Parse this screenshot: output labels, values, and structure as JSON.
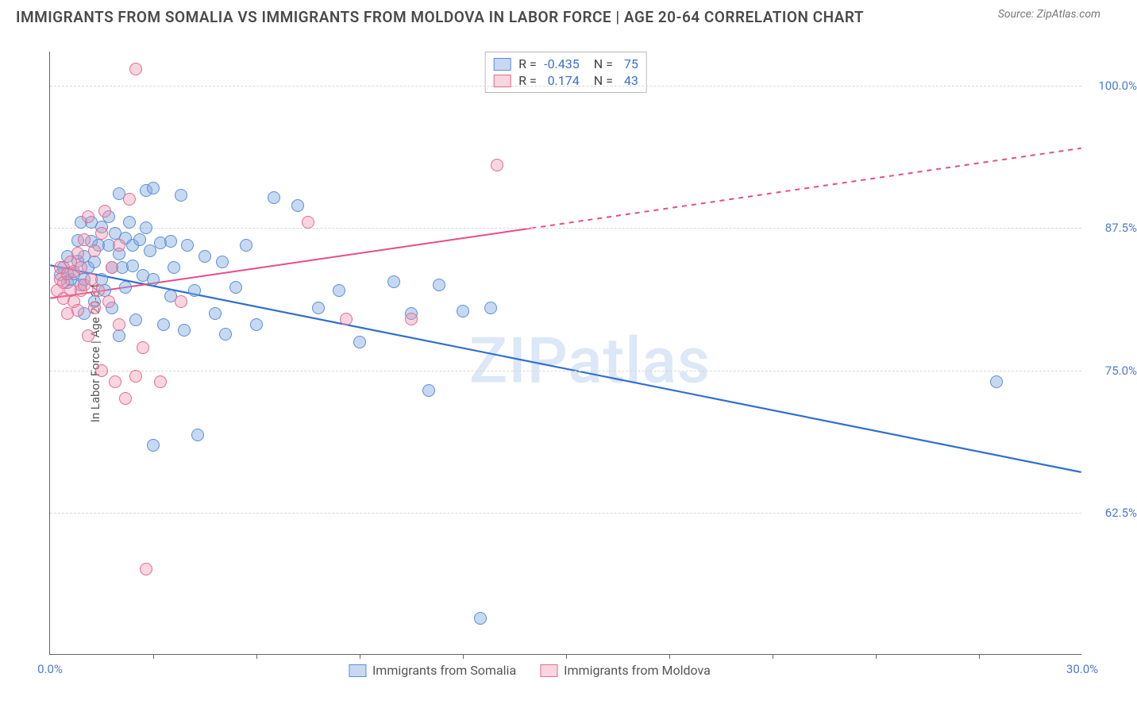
{
  "title": "IMMIGRANTS FROM SOMALIA VS IMMIGRANTS FROM MOLDOVA IN LABOR FORCE | AGE 20-64 CORRELATION CHART",
  "source": "Source: ZipAtlas.com",
  "watermark": "ZIPatlas",
  "ylabel": "In Labor Force | Age 20-64",
  "chart": {
    "type": "scatter-correlation",
    "background_color": "#ffffff",
    "grid_color": "#d8d8d8",
    "axis_color": "#666666",
    "xlim": [
      0.0,
      30.0
    ],
    "ylim": [
      50.0,
      103.0
    ],
    "xticks": [
      0.0,
      30.0
    ],
    "xtick_labels": [
      "0.0%",
      "30.0%"
    ],
    "yticks": [
      62.5,
      75.0,
      87.5,
      100.0
    ],
    "ytick_labels": [
      "62.5%",
      "75.0%",
      "87.5%",
      "100.0%"
    ],
    "xtick_minor": [
      3,
      6,
      9,
      12,
      15,
      18,
      21,
      24,
      27
    ],
    "point_radius": 8,
    "series": [
      {
        "id": "somalia",
        "label": "Immigrants from Somalia",
        "color_fill": "rgba(130,170,225,0.45)",
        "color_stroke": "#5a8fd6",
        "r": -0.435,
        "n": 75,
        "trend": {
          "x1": 0,
          "y1": 84.2,
          "x2": 30,
          "y2": 66.0,
          "solid_until_x": 30,
          "color": "#2f6fd0",
          "width": 2.2
        },
        "points": [
          [
            0.3,
            83.4
          ],
          [
            0.4,
            84.0
          ],
          [
            0.5,
            82.7
          ],
          [
            0.5,
            85.0
          ],
          [
            0.6,
            83.0
          ],
          [
            0.7,
            83.5
          ],
          [
            0.8,
            84.6
          ],
          [
            0.8,
            86.4
          ],
          [
            0.9,
            82.5
          ],
          [
            0.9,
            88.0
          ],
          [
            1.0,
            85.0
          ],
          [
            1.0,
            83.0
          ],
          [
            1.0,
            80.0
          ],
          [
            1.1,
            84.0
          ],
          [
            1.2,
            88.0
          ],
          [
            1.2,
            86.3
          ],
          [
            1.3,
            84.5
          ],
          [
            1.3,
            81.0
          ],
          [
            1.4,
            86.0
          ],
          [
            1.5,
            83.0
          ],
          [
            1.5,
            87.6
          ],
          [
            1.6,
            82.0
          ],
          [
            1.7,
            88.5
          ],
          [
            1.7,
            86.0
          ],
          [
            1.8,
            84.0
          ],
          [
            1.8,
            80.5
          ],
          [
            1.9,
            87.0
          ],
          [
            2.0,
            85.2
          ],
          [
            2.0,
            90.5
          ],
          [
            2.1,
            84.0
          ],
          [
            2.2,
            86.6
          ],
          [
            2.2,
            82.3
          ],
          [
            2.3,
            88.0
          ],
          [
            2.4,
            86.0
          ],
          [
            2.4,
            84.2
          ],
          [
            2.5,
            79.4
          ],
          [
            2.6,
            86.5
          ],
          [
            2.7,
            83.3
          ],
          [
            2.8,
            90.8
          ],
          [
            2.8,
            87.5
          ],
          [
            2.9,
            85.5
          ],
          [
            3.0,
            83.0
          ],
          [
            3.0,
            68.4
          ],
          [
            3.2,
            86.2
          ],
          [
            3.3,
            79.0
          ],
          [
            3.5,
            86.3
          ],
          [
            3.5,
            81.5
          ],
          [
            3.6,
            84.0
          ],
          [
            3.8,
            90.4
          ],
          [
            3.9,
            78.5
          ],
          [
            4.0,
            86.0
          ],
          [
            4.2,
            82.0
          ],
          [
            4.3,
            69.3
          ],
          [
            4.5,
            85.0
          ],
          [
            4.8,
            80.0
          ],
          [
            5.0,
            84.5
          ],
          [
            5.1,
            78.2
          ],
          [
            5.4,
            82.3
          ],
          [
            5.7,
            86.0
          ],
          [
            6.0,
            79.0
          ],
          [
            6.5,
            90.2
          ],
          [
            7.2,
            89.5
          ],
          [
            7.8,
            80.5
          ],
          [
            8.4,
            82.0
          ],
          [
            9.0,
            77.5
          ],
          [
            10.0,
            82.8
          ],
          [
            10.5,
            80.0
          ],
          [
            11.0,
            73.2
          ],
          [
            11.3,
            82.5
          ],
          [
            12.0,
            80.2
          ],
          [
            12.5,
            53.2
          ],
          [
            12.8,
            80.5
          ],
          [
            27.5,
            74.0
          ],
          [
            3.0,
            91.0
          ],
          [
            2.0,
            78.0
          ]
        ]
      },
      {
        "id": "moldova",
        "label": "Immigrants from Moldova",
        "color_fill": "rgba(240,150,175,0.4)",
        "color_stroke": "#e26c93",
        "r": 0.174,
        "n": 43,
        "trend": {
          "x1": 0,
          "y1": 81.3,
          "x2": 30,
          "y2": 94.5,
          "solid_until_x": 14,
          "color": "#e64c87",
          "width": 2.0
        },
        "points": [
          [
            0.2,
            82.0
          ],
          [
            0.3,
            83.0
          ],
          [
            0.3,
            84.0
          ],
          [
            0.4,
            81.3
          ],
          [
            0.4,
            82.7
          ],
          [
            0.5,
            83.5
          ],
          [
            0.5,
            80.0
          ],
          [
            0.6,
            84.5
          ],
          [
            0.6,
            82.0
          ],
          [
            0.7,
            81.0
          ],
          [
            0.7,
            83.7
          ],
          [
            0.8,
            85.3
          ],
          [
            0.8,
            80.3
          ],
          [
            0.9,
            82.0
          ],
          [
            0.9,
            84.0
          ],
          [
            1.0,
            86.5
          ],
          [
            1.0,
            82.5
          ],
          [
            1.1,
            78.0
          ],
          [
            1.1,
            88.5
          ],
          [
            1.2,
            83.0
          ],
          [
            1.3,
            80.5
          ],
          [
            1.3,
            85.5
          ],
          [
            1.4,
            82.0
          ],
          [
            1.5,
            87.0
          ],
          [
            1.5,
            75.0
          ],
          [
            1.6,
            89.0
          ],
          [
            1.7,
            81.0
          ],
          [
            1.8,
            84.0
          ],
          [
            1.9,
            74.0
          ],
          [
            2.0,
            86.0
          ],
          [
            2.0,
            79.0
          ],
          [
            2.2,
            72.5
          ],
          [
            2.3,
            90.0
          ],
          [
            2.5,
            101.5
          ],
          [
            2.5,
            74.5
          ],
          [
            2.7,
            77.0
          ],
          [
            2.8,
            57.5
          ],
          [
            3.2,
            74.0
          ],
          [
            3.8,
            81.0
          ],
          [
            7.5,
            88.0
          ],
          [
            8.6,
            79.5
          ],
          [
            10.5,
            79.5
          ],
          [
            13.0,
            93.0
          ]
        ]
      }
    ],
    "legend_bottom": [
      {
        "series": "somalia"
      },
      {
        "series": "moldova"
      }
    ]
  }
}
